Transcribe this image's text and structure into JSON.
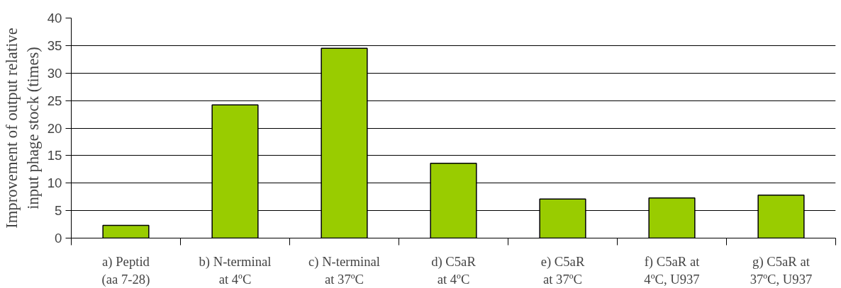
{
  "chart_data": {
    "type": "bar",
    "ylabel": "Improvement of output relative\ninput phage stock (times)",
    "categories": [
      "a) Peptid\n(aa 7-28)",
      "b) N-terminal\nat 4ºC",
      "c) N-terminal\nat 37ºC",
      "d) C5aR\nat 4ºC",
      "e) C5aR\nat 37ºC",
      "f) C5aR at\n4ºC, U937",
      "g) C5aR at\n37ºC, U937"
    ],
    "values": [
      2.3,
      24.2,
      34.5,
      13.6,
      7.1,
      7.3,
      7.8
    ],
    "color": "#99cc00",
    "ylim": [
      0,
      40
    ],
    "yticks": [
      0,
      5,
      10,
      15,
      20,
      25,
      30,
      35,
      40
    ],
    "grid": "y"
  }
}
